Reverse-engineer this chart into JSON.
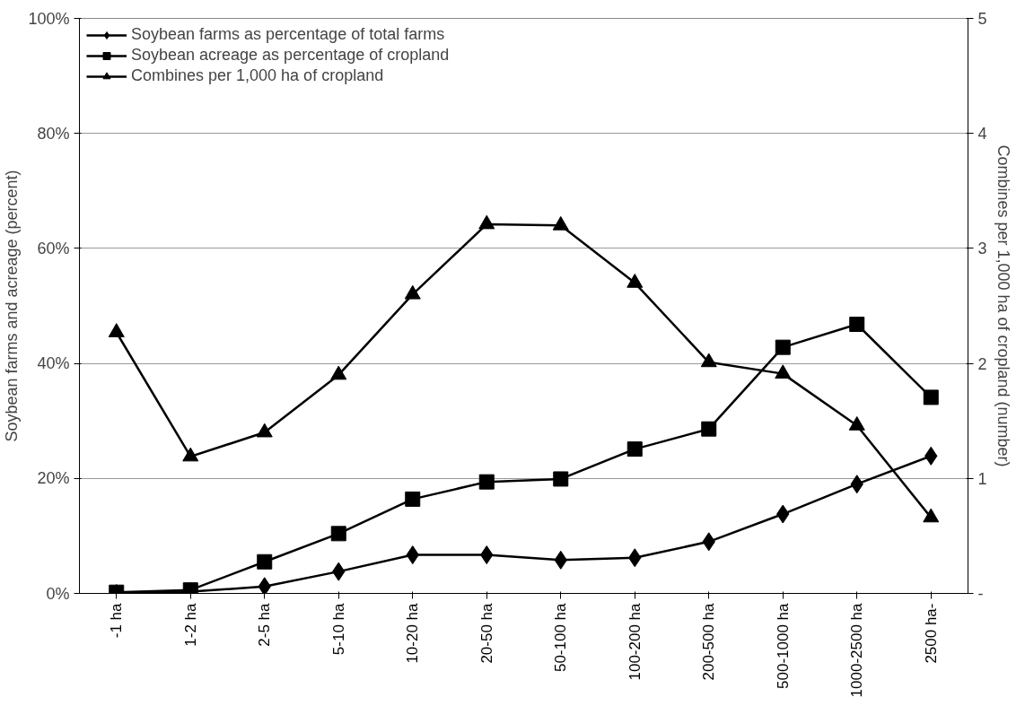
{
  "chart_data": {
    "type": "line",
    "categories": [
      "-1 ha",
      "1-2 ha",
      "2-5 ha",
      "5-10 ha",
      "10-20 ha",
      "20-50 ha",
      "50-100 ha",
      "100-200 ha",
      "200-500 ha",
      "500-1000 ha",
      "1000-2500 ha",
      "2500 ha-"
    ],
    "series": [
      {
        "name": "Soybean farms as percentage of total farms",
        "color": "#000000",
        "marker": "diamond",
        "values": [
          0,
          0.3,
          1.2,
          3.8,
          6.7,
          6.7,
          5.8,
          6.2,
          9.0,
          13.8,
          19.0,
          23.9
        ]
      },
      {
        "name": "Soybean acreage as percentage of cropland",
        "color": "#000000",
        "marker": "square",
        "values": [
          0.2,
          0.6,
          5.5,
          10.4,
          16.4,
          19.4,
          19.9,
          25.1,
          28.6,
          42.8,
          46.8,
          34.1
        ]
      },
      {
        "name": "Combines per 1,000 ha of cropland",
        "color": "#000000",
        "marker": "triangle",
        "axis": "y2",
        "values": [
          2.27,
          1.19,
          1.4,
          1.9,
          2.6,
          3.21,
          3.2,
          2.7,
          2.01,
          1.91,
          1.46,
          0.66
        ]
      }
    ],
    "ylabel": "Soybean farms and acreage (percent)",
    "y2label": "Combines per 1,000 ha of cropland (number)",
    "ylim": [
      0,
      100
    ],
    "yticks": [
      {
        "value": 0,
        "label": "0%"
      },
      {
        "value": 20,
        "label": "20%"
      },
      {
        "value": 40,
        "label": "40%"
      },
      {
        "value": 60,
        "label": "60%"
      },
      {
        "value": 80,
        "label": "80%"
      },
      {
        "value": 100,
        "label": "100%"
      }
    ],
    "y2lim": [
      0,
      5
    ],
    "y2ticks": [
      {
        "value": 0,
        "label": "-"
      },
      1,
      2,
      3,
      4,
      5
    ],
    "grid": "y",
    "legend": "top left",
    "line_style": "solid"
  }
}
